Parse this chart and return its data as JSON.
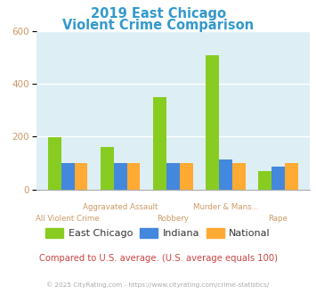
{
  "title_line1": "2019 East Chicago",
  "title_line2": "Violent Crime Comparison",
  "title_color": "#3399cc",
  "categories": [
    "All Violent Crime",
    "Aggravated Assault",
    "Robbery",
    "Murder & Mans...",
    "Rape"
  ],
  "row1_labels": [
    "Aggravated Assault",
    "Murder & Mans..."
  ],
  "row1_indices": [
    1,
    3
  ],
  "row2_labels": [
    "All Violent Crime",
    "Robbery",
    "Rape"
  ],
  "row2_indices": [
    0,
    2,
    4
  ],
  "east_chicago": [
    197,
    160,
    350,
    508,
    70
  ],
  "indiana": [
    100,
    100,
    100,
    115,
    88
  ],
  "national": [
    100,
    100,
    100,
    100,
    100
  ],
  "ec_color": "#88cc22",
  "in_color": "#4488dd",
  "nat_color": "#ffaa33",
  "ylim": [
    0,
    600
  ],
  "yticks": [
    0,
    200,
    400,
    600
  ],
  "bg_color": "#ddeef5",
  "grid_color": "#ffffff",
  "legend_labels": [
    "East Chicago",
    "Indiana",
    "National"
  ],
  "subtitle_text": "Compared to U.S. average. (U.S. average equals 100)",
  "subtitle_color": "#cc4444",
  "footer_text": "© 2025 CityRating.com - https://www.cityrating.com/crime-statistics/",
  "footer_color": "#aaaaaa",
  "bar_width": 0.25,
  "tick_color": "#cc9966",
  "label_color": "#333333"
}
